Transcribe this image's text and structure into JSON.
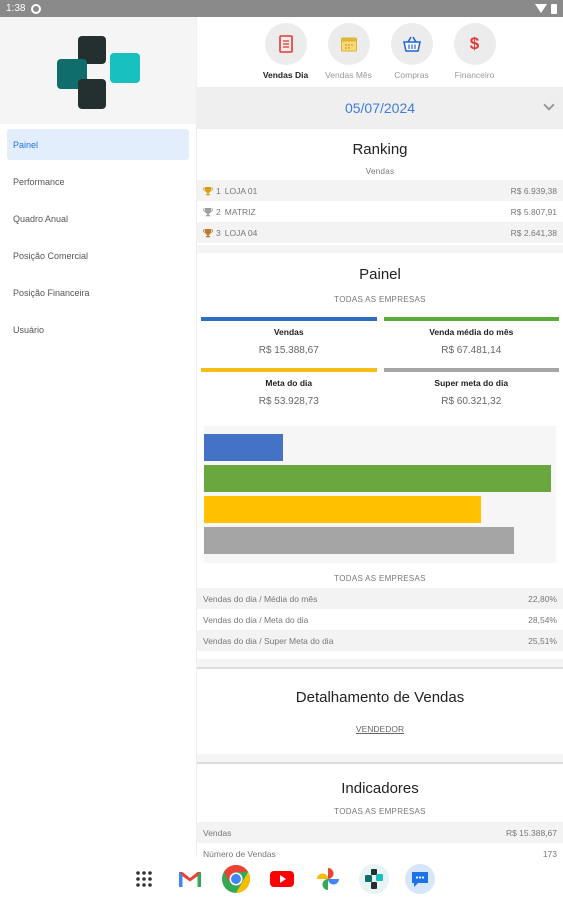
{
  "status_bar": {
    "time": "1:38"
  },
  "sidebar": {
    "items": [
      {
        "label": "Painel",
        "active": true
      },
      {
        "label": "Performance",
        "active": false
      },
      {
        "label": "Quadro Anual",
        "active": false
      },
      {
        "label": "Posição Comercial",
        "active": false
      },
      {
        "label": "Posição Financeira",
        "active": false
      },
      {
        "label": "Usuário",
        "active": false
      }
    ]
  },
  "tabs": [
    {
      "label": "Vendas Dia",
      "icon": "document-icon",
      "color": "#e53935",
      "active": true
    },
    {
      "label": "Vendas Mês",
      "icon": "calendar-icon",
      "color": "#f2c94c",
      "active": false
    },
    {
      "label": "Compras",
      "icon": "basket-icon",
      "color": "#1e63d6",
      "active": false
    },
    {
      "label": "Financeiro",
      "icon": "dollar-icon",
      "color": "#e53935",
      "active": false
    }
  ],
  "date": "05/07/2024",
  "ranking": {
    "title": "Ranking",
    "subtitle": "Vendas",
    "rows": [
      {
        "rank": "1",
        "store": "LOJA 01",
        "value": "R$ 6.939,38",
        "trophy_color": "#d4a017"
      },
      {
        "rank": "2",
        "store": "MATRIZ",
        "value": "R$ 5.807,91",
        "trophy_color": "#9e9e9e"
      },
      {
        "rank": "3",
        "store": "LOJA 04",
        "value": "R$ 2.641,38",
        "trophy_color": "#c07a2c"
      }
    ]
  },
  "painel": {
    "title": "Painel",
    "subtitle": "TODAS AS EMPRESAS",
    "kpis": [
      {
        "label": "Vendas",
        "value": "R$ 15.388,67",
        "color": "#2f6cc4"
      },
      {
        "label": "Venda média do mês",
        "value": "R$ 67.481,14",
        "color": "#5fab3a"
      },
      {
        "label": "Meta do dia",
        "value": "R$ 53.928,73",
        "color": "#f6bd16"
      },
      {
        "label": "Super meta do dia",
        "value": "R$ 60.321,32",
        "color": "#a6a6a6"
      }
    ],
    "bars": [
      {
        "color": "#4472c4",
        "value": 15388.67
      },
      {
        "color": "#6aa83f",
        "value": 67481.14
      },
      {
        "color": "#ffc000",
        "value": 53928.73
      },
      {
        "color": "#a5a5a5",
        "value": 60321.32
      }
    ],
    "bar_max": 68500,
    "ratios_subtitle": "TODAS AS EMPRESAS",
    "ratios": [
      {
        "label": "Vendas do dia / Média do mês",
        "value": "22,80%"
      },
      {
        "label": "Vendas do dia / Meta do dia",
        "value": "28,54%"
      },
      {
        "label": "Vendas do dia / Super Meta do dia",
        "value": "25,51%"
      }
    ]
  },
  "detalhamento": {
    "title": "Detalhamento de Vendas",
    "link": "VENDEDOR"
  },
  "indicadores": {
    "title": "Indicadores",
    "subtitle": "TODAS AS EMPRESAS",
    "rows": [
      {
        "label": "Vendas",
        "value": "R$ 15.388,67"
      },
      {
        "label": "Número de Vendas",
        "value": "173"
      }
    ]
  },
  "dock": {
    "apps": [
      "apps-grid-icon",
      "gmail-icon",
      "chrome-icon",
      "youtube-icon",
      "photos-icon",
      "app-logo-icon",
      "messages-icon"
    ]
  }
}
